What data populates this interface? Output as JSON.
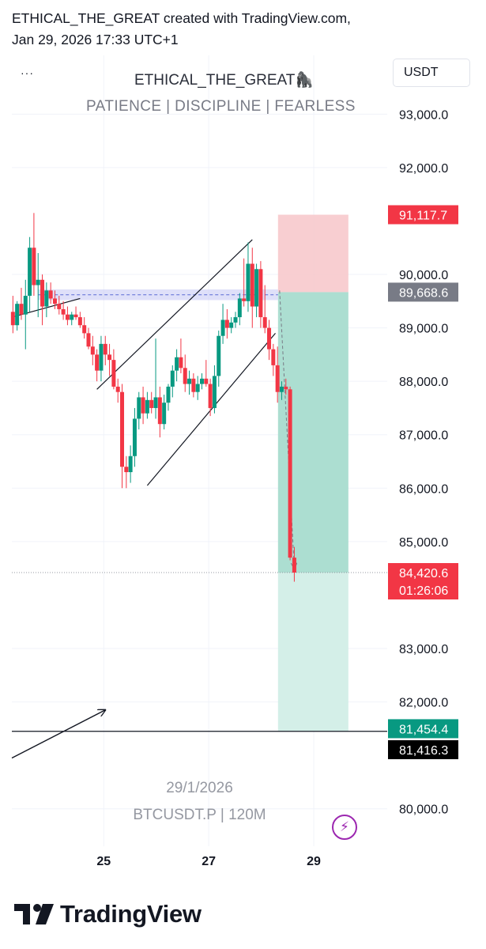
{
  "header": {
    "line1": "ETHICAL_THE_GREAT created with TradingView.com,",
    "line2": "Jan 29, 2026 17:33 UTC+1"
  },
  "chart_header": {
    "menu_label": "···",
    "title": "ETHICAL_THE_GREAT🦍",
    "subtitle": "PATIENCE  |  DISCIPLINE  |  FEARLESS",
    "currency": "USDT"
  },
  "watermark": {
    "date": "29/1/2026",
    "symbol": "BTCUSDT.P | 120M"
  },
  "footer": {
    "brand": "TradingView"
  },
  "colors": {
    "up": "#089981",
    "down": "#f23645",
    "stop_zone": "#f7c6c9",
    "target_zone": "#a8dccf",
    "target_zone_light": "#d4efe8",
    "range_band": "#c9ccf5",
    "accent": "#9c27b0"
  },
  "chart_data": {
    "type": "candlestick",
    "symbol": "BTCUSDT.P",
    "interval": "120M",
    "ylim": [
      79300,
      94100
    ],
    "y_ticks": [
      {
        "value": 93000,
        "label": "93,000.0"
      },
      {
        "value": 92000,
        "label": "92,000.0"
      },
      {
        "value": 90000,
        "label": "90,000.0"
      },
      {
        "value": 89000,
        "label": "89,000.0"
      },
      {
        "value": 88000,
        "label": "88,000.0"
      },
      {
        "value": 87000,
        "label": "87,000.0"
      },
      {
        "value": 86000,
        "label": "86,000.0"
      },
      {
        "value": 85000,
        "label": "85,000.0"
      },
      {
        "value": 83000,
        "label": "83,000.0"
      },
      {
        "value": 82000,
        "label": "82,000.0"
      },
      {
        "value": 80000,
        "label": "80,000.0"
      }
    ],
    "x_ticks": [
      {
        "x": 25,
        "label": "25"
      },
      {
        "x": 27,
        "label": "27"
      },
      {
        "x": 29,
        "label": "29"
      }
    ],
    "xlim": [
      23.25,
      30.4
    ],
    "price_labels": [
      {
        "value": 91117.7,
        "text": "91,117.7",
        "bg": "#f23645",
        "fg": "#ffffff"
      },
      {
        "value": 89668.6,
        "text": "89,668.6",
        "bg": "#787b86",
        "fg": "#ffffff"
      },
      {
        "value": 84420.6,
        "text": "84,420.6",
        "sub": "01:26:06",
        "bg": "#f23645",
        "fg": "#ffffff"
      },
      {
        "value": 81454.4,
        "text": "81,454.4",
        "bg": "#089981",
        "fg": "#ffffff"
      },
      {
        "value": 81416.3,
        "text": "81,416.3",
        "bg": "#000000",
        "fg": "#ffffff"
      }
    ],
    "position": {
      "x_start": 28.32,
      "x_end": 29.66,
      "entry": 89668.6,
      "stop": 91117.7,
      "target": 81454.4,
      "current": 84420.6
    },
    "candles": [
      {
        "x": 23.27,
        "o": 89300,
        "h": 89600,
        "l": 88900,
        "c": 89050
      },
      {
        "x": 23.35,
        "o": 89050,
        "h": 89500,
        "l": 88950,
        "c": 89450
      },
      {
        "x": 23.43,
        "o": 89450,
        "h": 89750,
        "l": 89150,
        "c": 89250
      },
      {
        "x": 23.51,
        "o": 89250,
        "h": 89900,
        "l": 88600,
        "c": 89600
      },
      {
        "x": 23.59,
        "o": 89600,
        "h": 90700,
        "l": 89300,
        "c": 90500
      },
      {
        "x": 23.67,
        "o": 90500,
        "h": 91150,
        "l": 89600,
        "c": 89800
      },
      {
        "x": 23.75,
        "o": 89800,
        "h": 90400,
        "l": 89200,
        "c": 89900
      },
      {
        "x": 23.83,
        "o": 89900,
        "h": 90000,
        "l": 89050,
        "c": 89400
      },
      {
        "x": 23.91,
        "o": 89400,
        "h": 89850,
        "l": 89200,
        "c": 89700
      },
      {
        "x": 23.99,
        "o": 89700,
        "h": 89850,
        "l": 89450,
        "c": 89550
      },
      {
        "x": 24.07,
        "o": 89550,
        "h": 89700,
        "l": 89350,
        "c": 89450
      },
      {
        "x": 24.15,
        "o": 89450,
        "h": 89600,
        "l": 89250,
        "c": 89350
      },
      {
        "x": 24.23,
        "o": 89350,
        "h": 89500,
        "l": 89150,
        "c": 89250
      },
      {
        "x": 24.31,
        "o": 89250,
        "h": 89400,
        "l": 89050,
        "c": 89150
      },
      {
        "x": 24.39,
        "o": 89150,
        "h": 89300,
        "l": 89050,
        "c": 89250
      },
      {
        "x": 24.47,
        "o": 89250,
        "h": 89400,
        "l": 89150,
        "c": 89200
      },
      {
        "x": 24.55,
        "o": 89200,
        "h": 89300,
        "l": 89000,
        "c": 89050
      },
      {
        "x": 24.63,
        "o": 89050,
        "h": 89200,
        "l": 88800,
        "c": 88900
      },
      {
        "x": 24.71,
        "o": 88900,
        "h": 89000,
        "l": 88600,
        "c": 88650
      },
      {
        "x": 24.79,
        "o": 88650,
        "h": 88850,
        "l": 88300,
        "c": 88500
      },
      {
        "x": 24.87,
        "o": 88500,
        "h": 88600,
        "l": 88000,
        "c": 88200
      },
      {
        "x": 24.95,
        "o": 88200,
        "h": 88850,
        "l": 88000,
        "c": 88700
      },
      {
        "x": 25.03,
        "o": 88700,
        "h": 88850,
        "l": 88300,
        "c": 88500
      },
      {
        "x": 25.11,
        "o": 88500,
        "h": 88700,
        "l": 88100,
        "c": 88400
      },
      {
        "x": 25.19,
        "o": 88400,
        "h": 88600,
        "l": 87850,
        "c": 87900
      },
      {
        "x": 25.27,
        "o": 87900,
        "h": 88050,
        "l": 87600,
        "c": 87800
      },
      {
        "x": 25.35,
        "o": 87800,
        "h": 87950,
        "l": 86000,
        "c": 86400
      },
      {
        "x": 25.43,
        "o": 86400,
        "h": 86600,
        "l": 86000,
        "c": 86300
      },
      {
        "x": 25.51,
        "o": 86300,
        "h": 86800,
        "l": 86100,
        "c": 86600
      },
      {
        "x": 25.59,
        "o": 86600,
        "h": 87500,
        "l": 86400,
        "c": 87300
      },
      {
        "x": 25.67,
        "o": 87300,
        "h": 87800,
        "l": 87100,
        "c": 87700
      },
      {
        "x": 25.75,
        "o": 87700,
        "h": 87900,
        "l": 87200,
        "c": 87400
      },
      {
        "x": 25.83,
        "o": 87400,
        "h": 87800,
        "l": 87300,
        "c": 87650
      },
      {
        "x": 25.91,
        "o": 87650,
        "h": 87800,
        "l": 87400,
        "c": 87500
      },
      {
        "x": 25.99,
        "o": 87500,
        "h": 88800,
        "l": 87300,
        "c": 87700
      },
      {
        "x": 26.07,
        "o": 87700,
        "h": 87900,
        "l": 86950,
        "c": 87200
      },
      {
        "x": 26.15,
        "o": 87200,
        "h": 87750,
        "l": 87100,
        "c": 87600
      },
      {
        "x": 26.23,
        "o": 87600,
        "h": 87950,
        "l": 87450,
        "c": 87900
      },
      {
        "x": 26.31,
        "o": 87900,
        "h": 88300,
        "l": 87700,
        "c": 88200
      },
      {
        "x": 26.39,
        "o": 88200,
        "h": 88600,
        "l": 88000,
        "c": 88450
      },
      {
        "x": 26.47,
        "o": 88450,
        "h": 88800,
        "l": 88150,
        "c": 88250
      },
      {
        "x": 26.55,
        "o": 88250,
        "h": 88500,
        "l": 87800,
        "c": 87950
      },
      {
        "x": 26.63,
        "o": 87950,
        "h": 88200,
        "l": 87750,
        "c": 88050
      },
      {
        "x": 26.71,
        "o": 88050,
        "h": 88150,
        "l": 87700,
        "c": 87800
      },
      {
        "x": 26.79,
        "o": 87800,
        "h": 88100,
        "l": 87650,
        "c": 87950
      },
      {
        "x": 26.87,
        "o": 87950,
        "h": 88150,
        "l": 87850,
        "c": 88050
      },
      {
        "x": 26.95,
        "o": 88050,
        "h": 88400,
        "l": 87900,
        "c": 87950
      },
      {
        "x": 27.03,
        "o": 87950,
        "h": 88050,
        "l": 87350,
        "c": 87500
      },
      {
        "x": 27.11,
        "o": 87500,
        "h": 88300,
        "l": 87400,
        "c": 88100
      },
      {
        "x": 27.19,
        "o": 88100,
        "h": 88950,
        "l": 87900,
        "c": 88850
      },
      {
        "x": 27.27,
        "o": 88850,
        "h": 89450,
        "l": 88700,
        "c": 89150
      },
      {
        "x": 27.35,
        "o": 89150,
        "h": 89350,
        "l": 88800,
        "c": 89000
      },
      {
        "x": 27.43,
        "o": 89000,
        "h": 89200,
        "l": 88900,
        "c": 89100
      },
      {
        "x": 27.51,
        "o": 89100,
        "h": 89300,
        "l": 89000,
        "c": 89200
      },
      {
        "x": 27.59,
        "o": 89200,
        "h": 89650,
        "l": 89050,
        "c": 89550
      },
      {
        "x": 27.67,
        "o": 89550,
        "h": 90300,
        "l": 89400,
        "c": 89500
      },
      {
        "x": 27.75,
        "o": 89500,
        "h": 90600,
        "l": 89300,
        "c": 90200
      },
      {
        "x": 27.83,
        "o": 90200,
        "h": 90500,
        "l": 89000,
        "c": 89400
      },
      {
        "x": 27.91,
        "o": 89400,
        "h": 90200,
        "l": 89200,
        "c": 90100
      },
      {
        "x": 27.99,
        "o": 90100,
        "h": 90250,
        "l": 89000,
        "c": 89200
      },
      {
        "x": 28.07,
        "o": 89200,
        "h": 89800,
        "l": 88900,
        "c": 89000
      },
      {
        "x": 28.15,
        "o": 89000,
        "h": 89150,
        "l": 88400,
        "c": 88600
      },
      {
        "x": 28.23,
        "o": 88600,
        "h": 88700,
        "l": 88100,
        "c": 88300
      },
      {
        "x": 28.31,
        "o": 88300,
        "h": 88650,
        "l": 87600,
        "c": 87800
      },
      {
        "x": 28.39,
        "o": 87800,
        "h": 88000,
        "l": 87650,
        "c": 87900
      },
      {
        "x": 28.47,
        "o": 87900,
        "h": 88050,
        "l": 87750,
        "c": 87850
      },
      {
        "x": 28.55,
        "o": 87850,
        "h": 87900,
        "l": 84650,
        "c": 84700
      },
      {
        "x": 28.63,
        "o": 84700,
        "h": 84900,
        "l": 84250,
        "c": 84420
      }
    ],
    "drawings": [
      {
        "type": "line",
        "from": [
          23.25,
          89200
        ],
        "to": [
          24.55,
          89550
        ]
      },
      {
        "type": "line",
        "from": [
          24.87,
          87850
        ],
        "to": [
          27.83,
          90650
        ]
      },
      {
        "type": "line",
        "from": [
          25.83,
          86050
        ],
        "to": [
          28.27,
          88900
        ]
      },
      {
        "type": "line",
        "from": [
          23.25,
          81450
        ],
        "to": [
          30.4,
          81450
        ]
      },
      {
        "type": "dotted-line",
        "from": [
          23.25,
          84420.6
        ],
        "to": [
          30.4,
          84420.6
        ]
      },
      {
        "type": "arrow",
        "from": [
          23.25,
          80950
        ],
        "to": [
          25.03,
          81850
        ]
      },
      {
        "type": "dashed-arrow",
        "from": [
          28.35,
          89700
        ],
        "to": [
          28.63,
          84500
        ]
      }
    ],
    "range_band": {
      "x_start": 23.75,
      "x_end": 28.32,
      "low": 89520,
      "high": 89720
    }
  }
}
